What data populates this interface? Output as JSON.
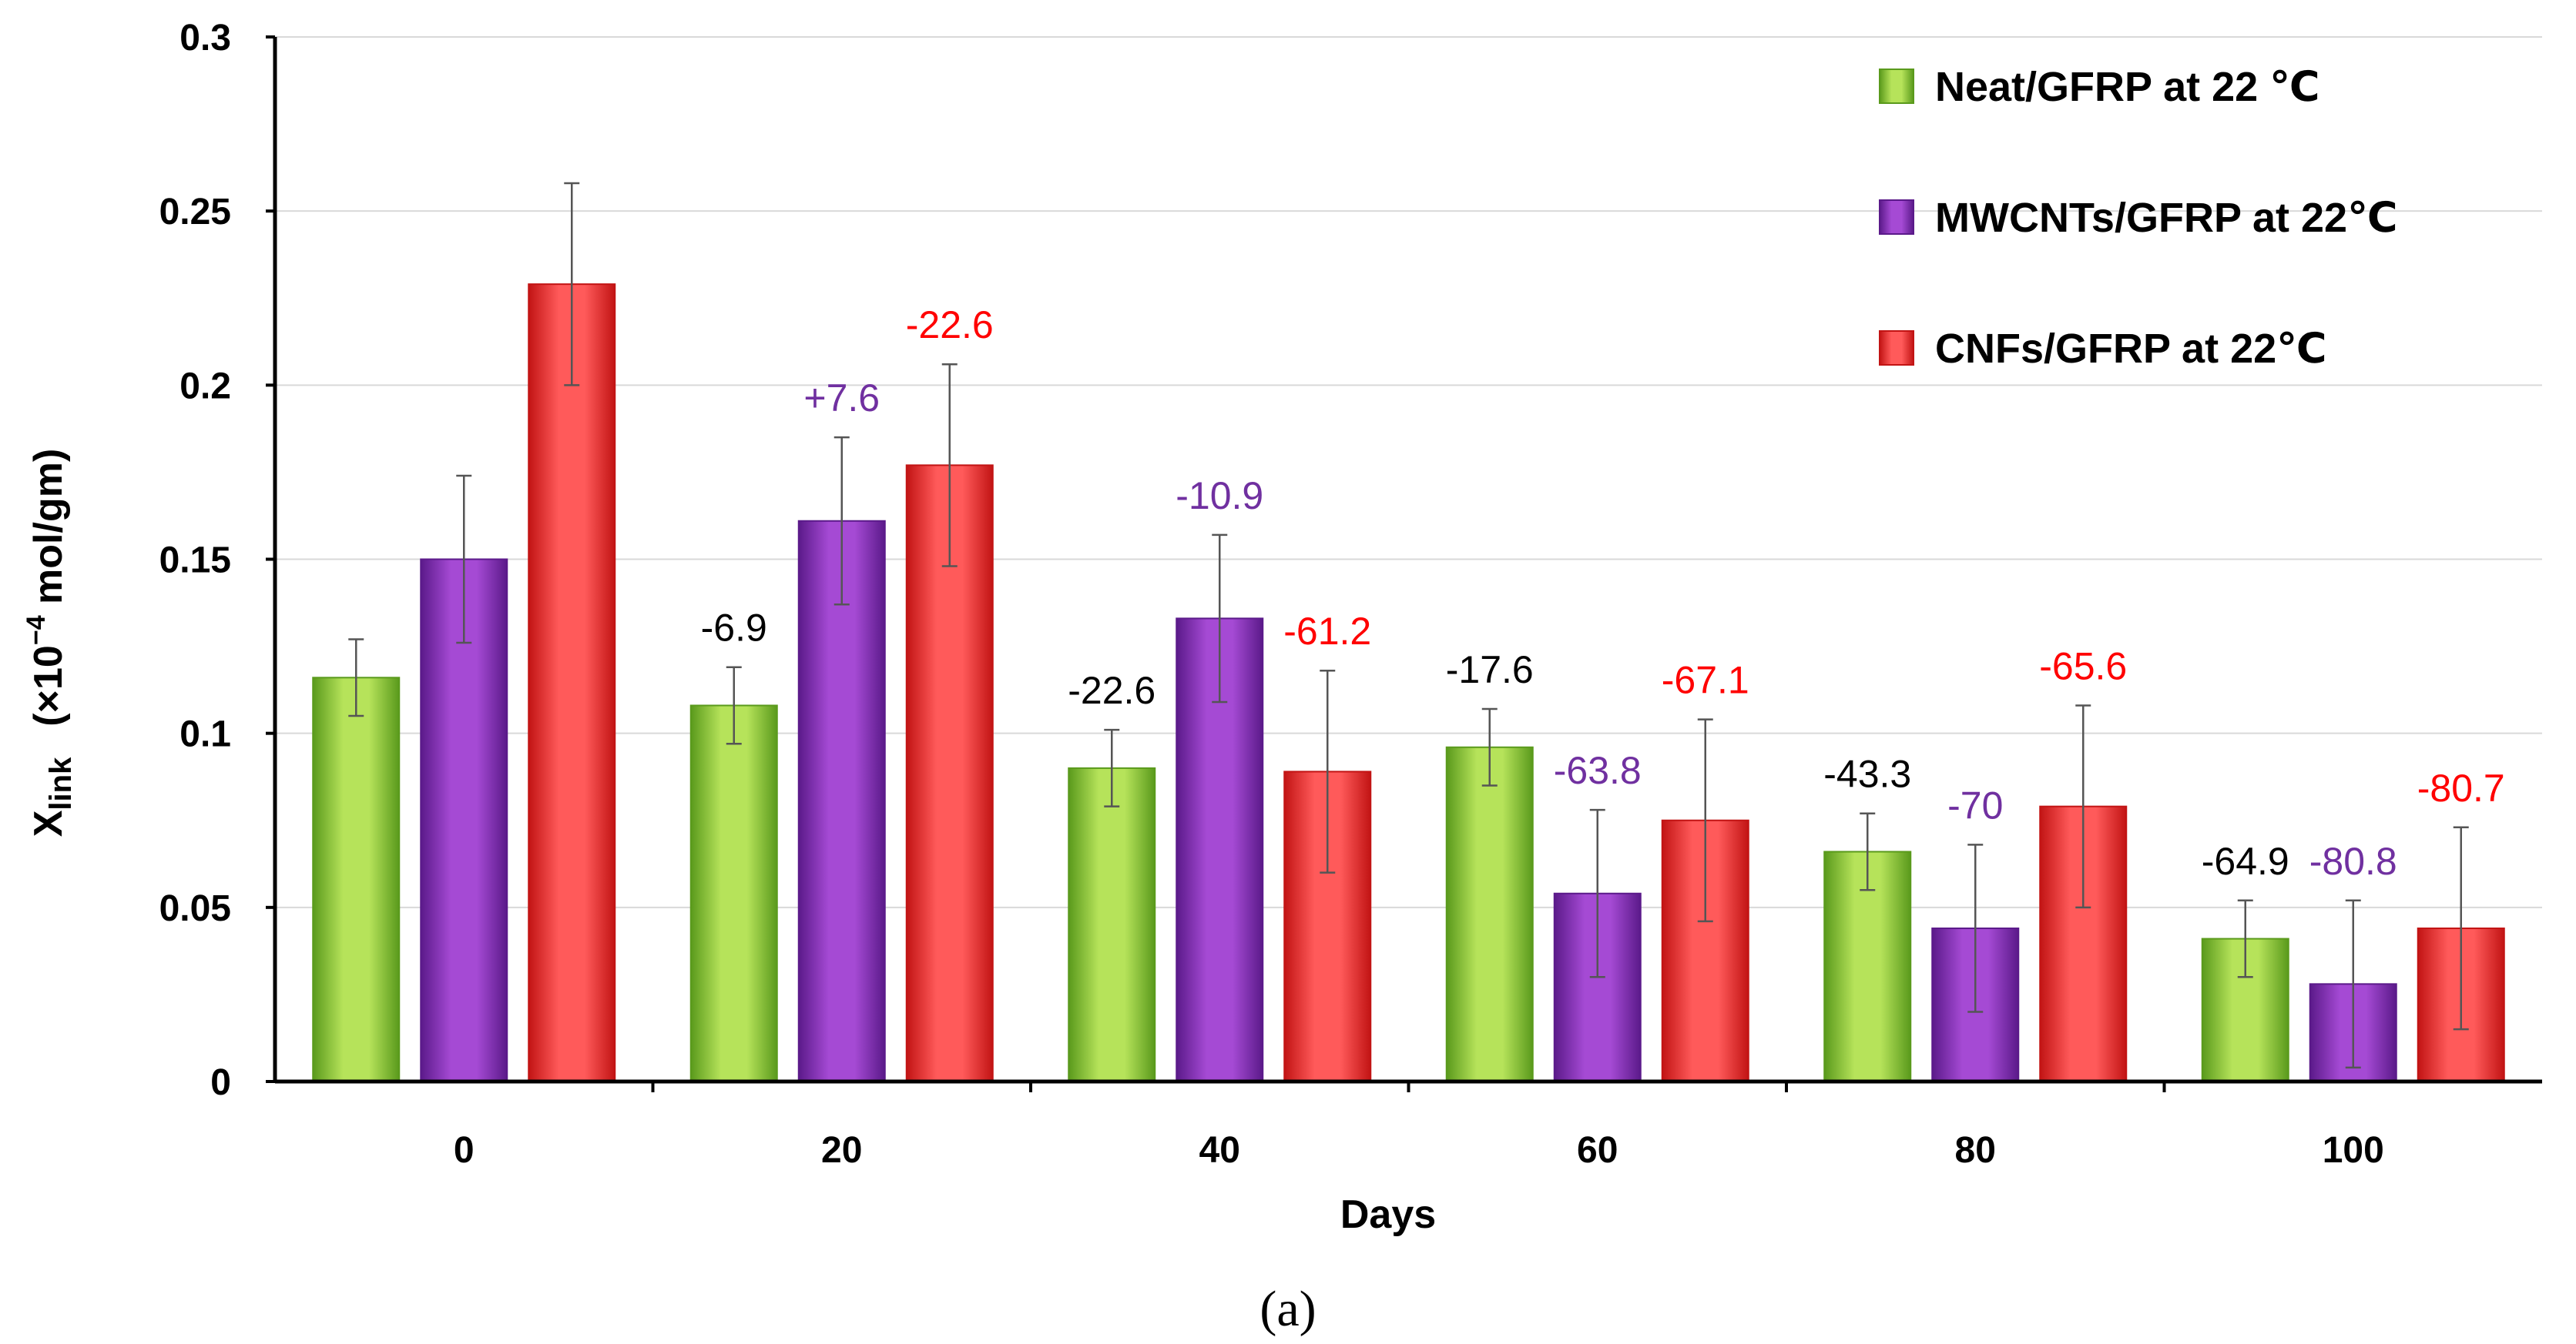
{
  "chart_data": {
    "type": "bar",
    "title": "",
    "xlabel": "Days",
    "ylabel_prefix": "X",
    "ylabel_sub": "link",
    "ylabel_unit_pre": "(×10",
    "ylabel_unit_sup": "−4",
    "ylabel_unit_post": " mol/gm)",
    "caption": "(a)",
    "ylim": [
      0,
      0.3
    ],
    "yticks": [
      {
        "value": 0,
        "label": "0"
      },
      {
        "value": 0.05,
        "label": "0.05"
      },
      {
        "value": 0.1,
        "label": "0.1"
      },
      {
        "value": 0.15,
        "label": "0.15"
      },
      {
        "value": 0.2,
        "label": "0.2"
      },
      {
        "value": 0.25,
        "label": "0.25"
      },
      {
        "value": 0.3,
        "label": "0.3"
      }
    ],
    "grid": true,
    "legend_position": "top-right",
    "categories": [
      "0",
      "20",
      "40",
      "60",
      "80",
      "100"
    ],
    "series": [
      {
        "name": "Neat/GFRP at 22 ℃",
        "color_light": "#b6e35a",
        "color_dark": "#5a9a1c",
        "label_color": "#000000",
        "values": [
          0.116,
          0.108,
          0.09,
          0.096,
          0.066,
          0.041
        ],
        "errors": [
          0.011,
          0.011,
          0.011,
          0.011,
          0.011,
          0.011
        ],
        "labels": [
          "",
          "-6.9",
          "-22.6",
          "-17.6",
          "-43.3",
          "-64.9"
        ]
      },
      {
        "name": "MWCNTs/GFRP at 22℃",
        "color_light": "#a54ad4",
        "color_dark": "#5b1a8a",
        "label_color": "#7030a0",
        "values": [
          0.15,
          0.161,
          0.133,
          0.054,
          0.044,
          0.028
        ],
        "errors": [
          0.024,
          0.024,
          0.024,
          0.024,
          0.024,
          0.024
        ],
        "labels": [
          "",
          "+7.6",
          "-10.9",
          "-63.8",
          "-70",
          "-80.8"
        ]
      },
      {
        "name": "CNFs/GFRP at 22℃",
        "color_light": "#ff5a5a",
        "color_dark": "#c21414",
        "label_color": "#ff0000",
        "values": [
          0.229,
          0.177,
          0.089,
          0.075,
          0.079,
          0.044
        ],
        "errors": [
          0.029,
          0.029,
          0.029,
          0.029,
          0.029,
          0.029
        ],
        "labels": [
          "",
          "-22.6",
          "-61.2",
          "-67.1",
          "-65.6",
          "-80.7"
        ]
      }
    ]
  }
}
